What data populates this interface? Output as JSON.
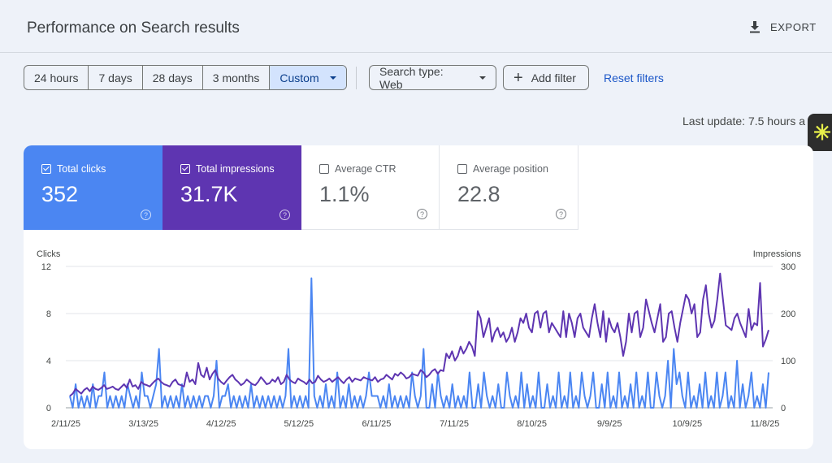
{
  "header": {
    "title": "Performance on Search results",
    "export_label": "EXPORT"
  },
  "date_ranges": [
    {
      "label": "24 hours",
      "active": false
    },
    {
      "label": "7 days",
      "active": false
    },
    {
      "label": "28 days",
      "active": false
    },
    {
      "label": "3 months",
      "active": false
    },
    {
      "label": "Custom",
      "active": true
    }
  ],
  "filters": {
    "search_type": "Search type: Web",
    "add_filter": "Add filter",
    "reset": "Reset filters"
  },
  "last_update": "Last update: 7.5 hours a",
  "metrics": [
    {
      "label": "Total clicks",
      "value": "352",
      "checked": true,
      "color": "#4b86f2"
    },
    {
      "label": "Total impressions",
      "value": "31.7K",
      "checked": true,
      "color": "#5e35b1"
    },
    {
      "label": "Average CTR",
      "value": "1.1%",
      "checked": false
    },
    {
      "label": "Average position",
      "value": "22.8",
      "checked": false
    }
  ],
  "chart_data": {
    "type": "line",
    "left_axis_label": "Clicks",
    "right_axis_label": "Impressions",
    "left_ticks": [
      "12",
      "8",
      "4",
      "0"
    ],
    "right_ticks": [
      "300",
      "200",
      "100",
      "0"
    ],
    "left_range": [
      0,
      12
    ],
    "right_range": [
      0,
      300
    ],
    "x_tick_labels": [
      "2/11/25",
      "3/13/25",
      "4/12/25",
      "5/12/25",
      "6/11/25",
      "7/11/25",
      "8/10/25",
      "9/9/25",
      "10/9/25",
      "11/8/25"
    ],
    "x_start": "2025-02-11",
    "x_end": "2025-11-11",
    "grid": true,
    "series": [
      {
        "name": "Clicks",
        "axis": "left",
        "color": "#4b86f2",
        "values": [
          1,
          0,
          2,
          0,
          1,
          0,
          1,
          0,
          2,
          0,
          1,
          1,
          3,
          0,
          1,
          0,
          1,
          0,
          1,
          0,
          2,
          1,
          0,
          1,
          0,
          3,
          1,
          1,
          0,
          1,
          2,
          5,
          0,
          1,
          0,
          1,
          0,
          1,
          0,
          2,
          0,
          1,
          0,
          1,
          0,
          1,
          0,
          1,
          1,
          0,
          1,
          4,
          0,
          1,
          1,
          2,
          0,
          1,
          0,
          1,
          0,
          1,
          0,
          2,
          0,
          1,
          0,
          1,
          0,
          1,
          0,
          1,
          0,
          1,
          0,
          1,
          5,
          0,
          1,
          0,
          1,
          0,
          1,
          0,
          11,
          1,
          0,
          1,
          0,
          2,
          0,
          1,
          0,
          3,
          0,
          1,
          0,
          2,
          0,
          1,
          0,
          1,
          0,
          1,
          3,
          1,
          1,
          1,
          0,
          1,
          0,
          2,
          0,
          1,
          0,
          1,
          0,
          1,
          0,
          3,
          1,
          0,
          1,
          5,
          0,
          0,
          2,
          0,
          3,
          1,
          0,
          1,
          0,
          2,
          0,
          1,
          0,
          1,
          0,
          3,
          0,
          0,
          2,
          0,
          3,
          1,
          0,
          1,
          0,
          2,
          0,
          0,
          3,
          1,
          0,
          1,
          0,
          3,
          0,
          2,
          0,
          1,
          0,
          3,
          0,
          0,
          2,
          0,
          1,
          0,
          3,
          0,
          1,
          0,
          3,
          0,
          1,
          0,
          3,
          1,
          0,
          1,
          3,
          0,
          0,
          2,
          0,
          3,
          0,
          1,
          0,
          3,
          0,
          1,
          0,
          2,
          0,
          3,
          0,
          1,
          0,
          3,
          0,
          0,
          3,
          1,
          0,
          1,
          4,
          0,
          5,
          2,
          3,
          1,
          0,
          3,
          0,
          1,
          0,
          2,
          0,
          3,
          0,
          1,
          0,
          3,
          0,
          1,
          3,
          0,
          1,
          0,
          4,
          0,
          2,
          0,
          1,
          3,
          0,
          1,
          0,
          2,
          0,
          3
        ]
      },
      {
        "name": "Impressions",
        "axis": "right",
        "color": "#5e35b1",
        "values": [
          25,
          30,
          40,
          35,
          30,
          38,
          42,
          35,
          45,
          40,
          38,
          42,
          48,
          40,
          42,
          45,
          40,
          38,
          44,
          50,
          42,
          60,
          45,
          48,
          40,
          55,
          50,
          48,
          45,
          52,
          58,
          62,
          55,
          50,
          48,
          45,
          55,
          60,
          50,
          48,
          45,
          75,
          55,
          60,
          50,
          95,
          70,
          65,
          85,
          60,
          72,
          80,
          62,
          55,
          50,
          58,
          65,
          70,
          60,
          55,
          48,
          52,
          60,
          55,
          50,
          48,
          55,
          65,
          58,
          50,
          52,
          60,
          55,
          65,
          50,
          55,
          70,
          60,
          55,
          52,
          62,
          58,
          55,
          50,
          60,
          52,
          55,
          68,
          60,
          55,
          58,
          62,
          55,
          60,
          65,
          58,
          52,
          60,
          65,
          55,
          62,
          60,
          58,
          65,
          62,
          60,
          58,
          65,
          55,
          60,
          62,
          70,
          65,
          60,
          72,
          68,
          75,
          70,
          62,
          65,
          72,
          70,
          68,
          80,
          75,
          65,
          70,
          78,
          82,
          72,
          80,
          78,
          115,
          105,
          120,
          100,
          110,
          130,
          115,
          125,
          140,
          130,
          110,
          205,
          190,
          150,
          170,
          190,
          140,
          160,
          170,
          150,
          160,
          140,
          150,
          170,
          140,
          160,
          190,
          180,
          200,
          170,
          160,
          200,
          205,
          170,
          200,
          205,
          160,
          180,
          170,
          160,
          150,
          205,
          150,
          200,
          180,
          150,
          190,
          200,
          170,
          160,
          150,
          190,
          220,
          180,
          150,
          205,
          140,
          190,
          170,
          160,
          180,
          150,
          110,
          140,
          200,
          160,
          200,
          205,
          150,
          170,
          230,
          205,
          180,
          160,
          190,
          220,
          140,
          150,
          200,
          205,
          170,
          140,
          180,
          210,
          240,
          230,
          200,
          220,
          150,
          160,
          230,
          260,
          200,
          170,
          185,
          230,
          285,
          230,
          175,
          170,
          165,
          190,
          200,
          180,
          165,
          150,
          210,
          165,
          180,
          175,
          265,
          130,
          145,
          165
        ]
      }
    ]
  }
}
